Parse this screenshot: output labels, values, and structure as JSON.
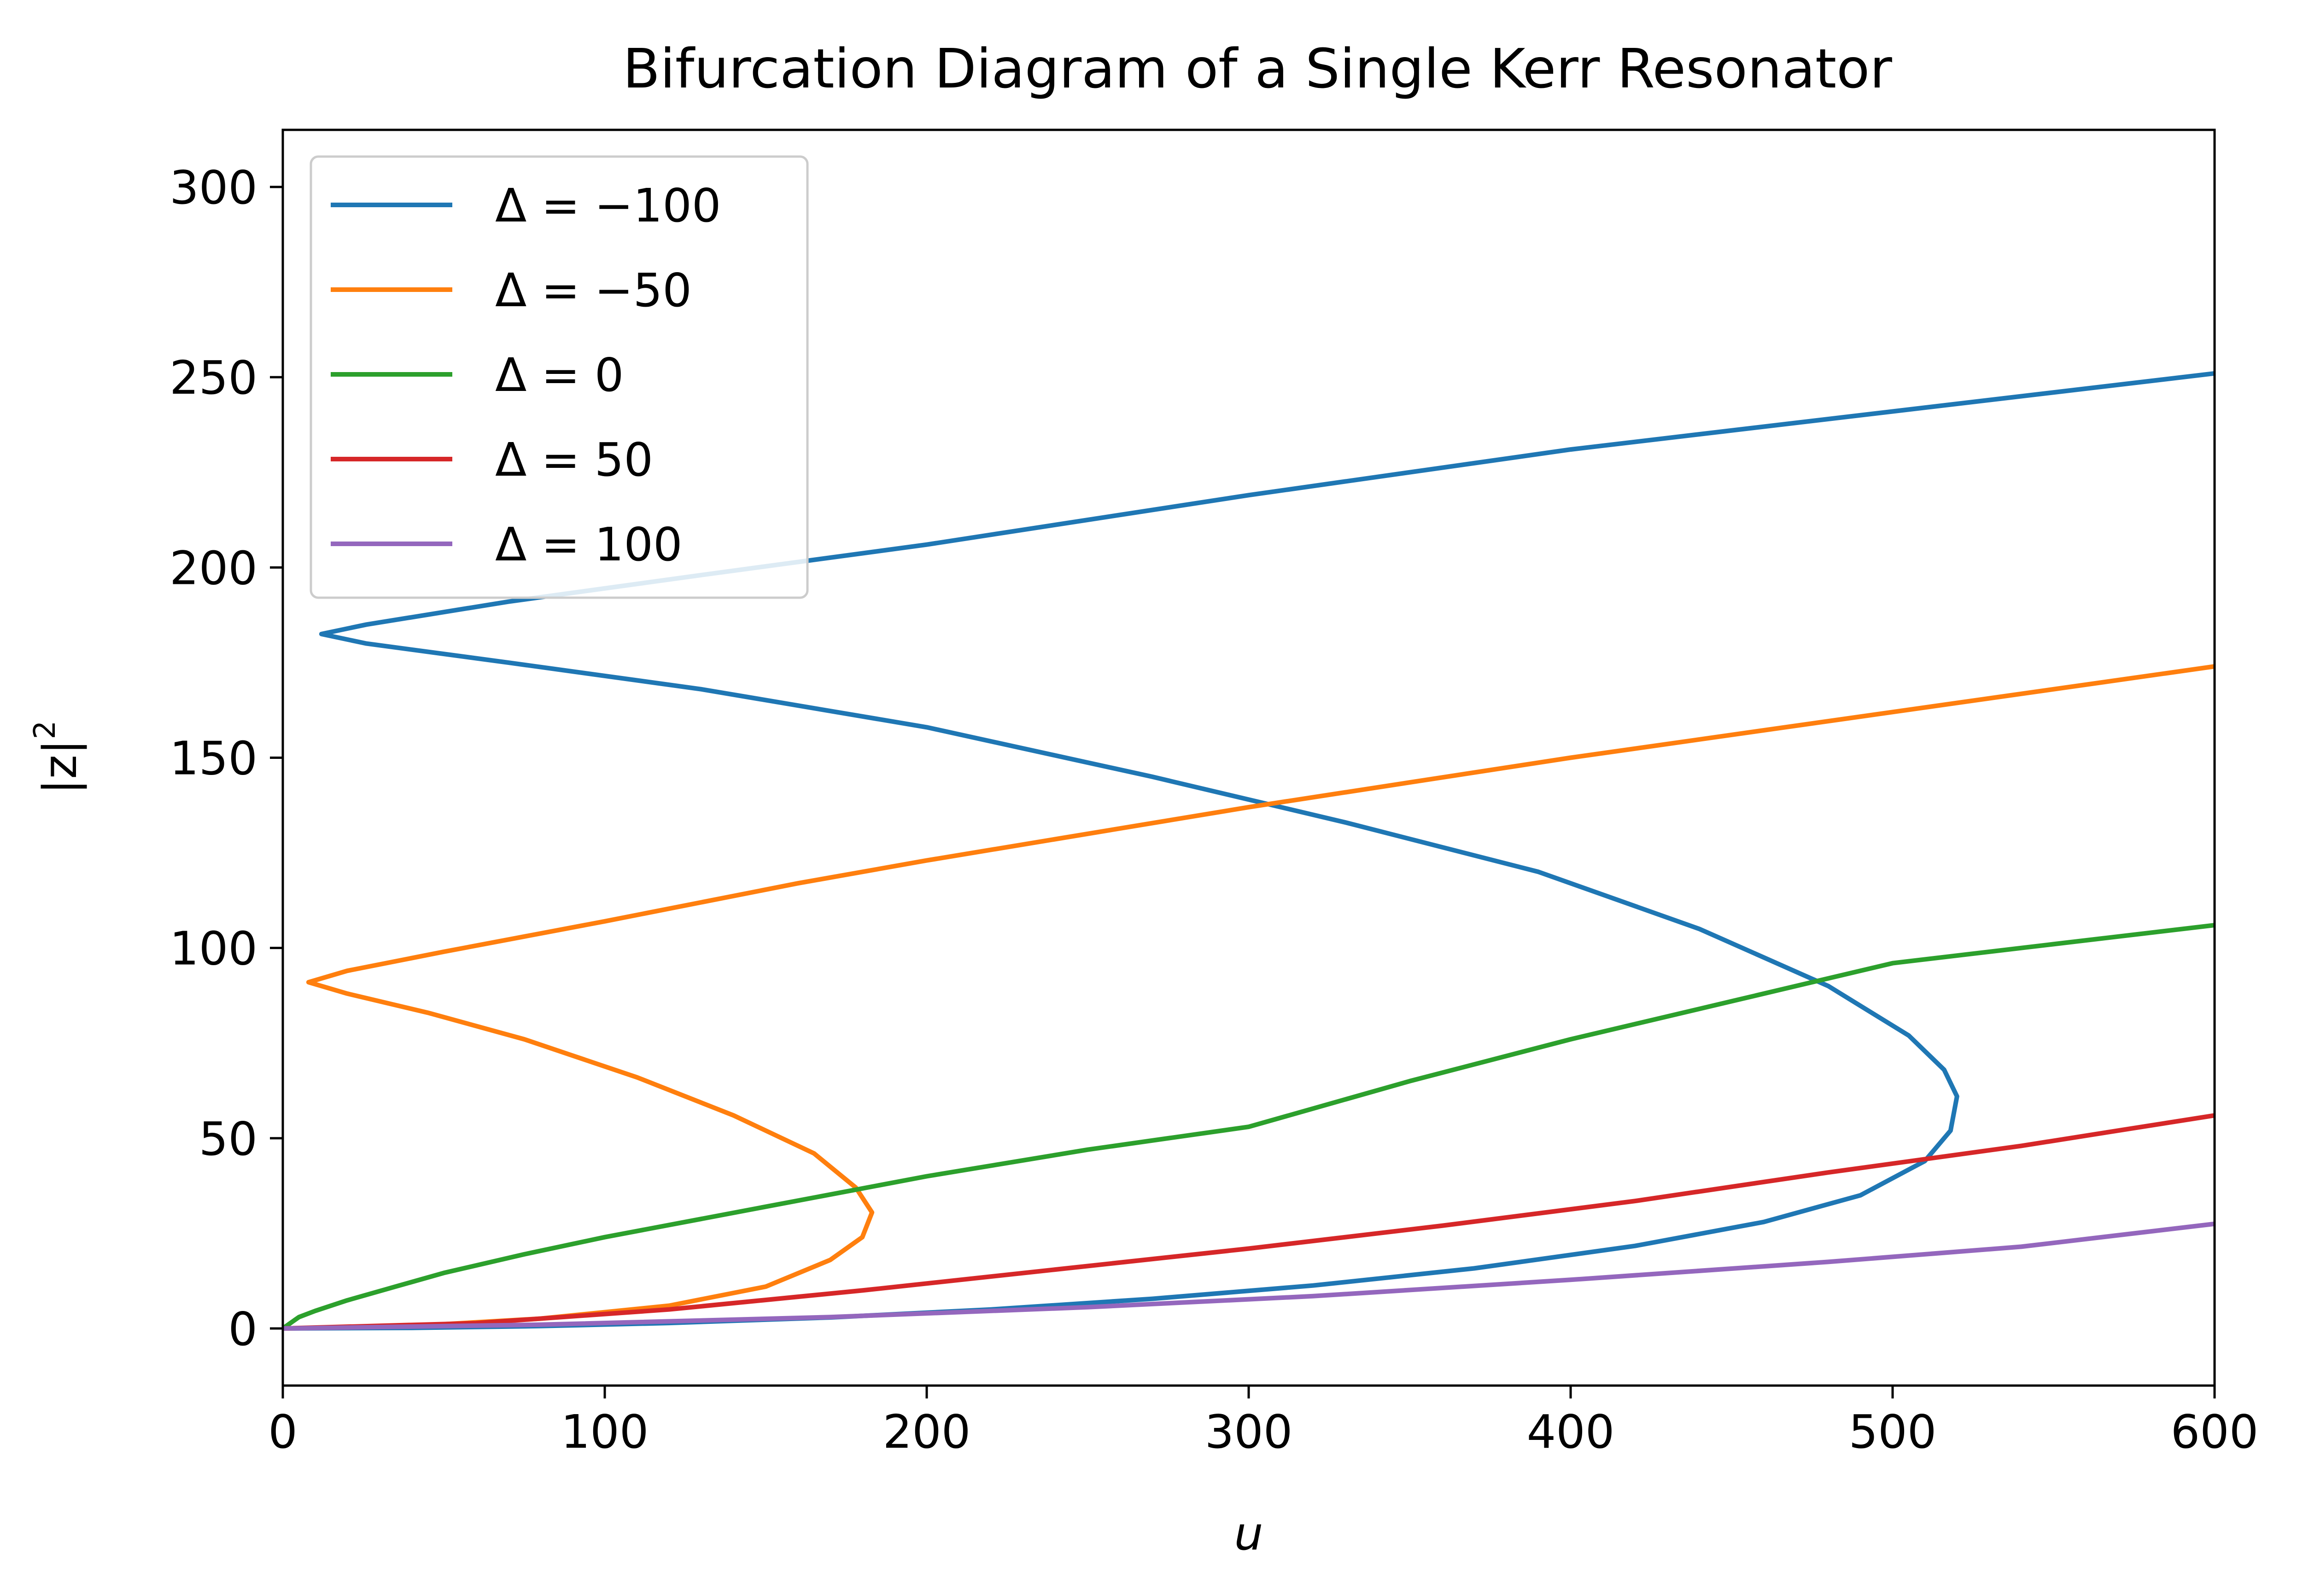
{
  "chart_data": {
    "type": "line",
    "title": "Bifurcation Diagram of a Single Kerr Resonator",
    "xlabel": "u",
    "ylabel_base": "|z|",
    "ylabel_sup": "2",
    "xlim": [
      0,
      600
    ],
    "ylim": [
      -15,
      315
    ],
    "x_ticks": [
      0,
      100,
      200,
      300,
      400,
      500,
      600
    ],
    "y_ticks": [
      0,
      50,
      100,
      150,
      200,
      250,
      300
    ],
    "grid": false,
    "legend_position": "upper-left",
    "series": [
      {
        "name": "Δ = −100",
        "legend_prefix": "Δ = ",
        "legend_value": "−100",
        "color": "#1f77b4",
        "points": [
          [
            0,
            0
          ],
          [
            40,
            0.16
          ],
          [
            80,
            0.64
          ],
          [
            120,
            1.45
          ],
          [
            170,
            2.9
          ],
          [
            220,
            5.0
          ],
          [
            270,
            7.8
          ],
          [
            320,
            11.3
          ],
          [
            370,
            15.8
          ],
          [
            420,
            21.7
          ],
          [
            460,
            28.0
          ],
          [
            490,
            35.0
          ],
          [
            510,
            44.0
          ],
          [
            518,
            52.0
          ],
          [
            520,
            61.0
          ],
          [
            516,
            68.0
          ],
          [
            505,
            77.0
          ],
          [
            480,
            90.0
          ],
          [
            440,
            105.0
          ],
          [
            390,
            120.0
          ],
          [
            330,
            133.0
          ],
          [
            270,
            145.0
          ],
          [
            200,
            158.0
          ],
          [
            130,
            168.0
          ],
          [
            70,
            175.0
          ],
          [
            26,
            180.0
          ],
          [
            12,
            182.5
          ],
          [
            26,
            185.0
          ],
          [
            70,
            191.0
          ],
          [
            130,
            198.0
          ],
          [
            200,
            206.0
          ],
          [
            300,
            219.0
          ],
          [
            400,
            231.0
          ],
          [
            500,
            241.0
          ],
          [
            600,
            251.0
          ]
        ]
      },
      {
        "name": "Δ = −50",
        "legend_prefix": "Δ = ",
        "legend_value": "−50",
        "color": "#ff7f0e",
        "points": [
          [
            0,
            0
          ],
          [
            40,
            0.65
          ],
          [
            80,
            2.6
          ],
          [
            120,
            6.0
          ],
          [
            150,
            11.0
          ],
          [
            170,
            18.0
          ],
          [
            180,
            24.0
          ],
          [
            183,
            30.5
          ],
          [
            178,
            37.0
          ],
          [
            165,
            46.0
          ],
          [
            140,
            56.0
          ],
          [
            110,
            66.0
          ],
          [
            75,
            76.0
          ],
          [
            45,
            83.0
          ],
          [
            20,
            88.0
          ],
          [
            8,
            91.0
          ],
          [
            20,
            94.0
          ],
          [
            50,
            99.0
          ],
          [
            100,
            107.0
          ],
          [
            160,
            117.0
          ],
          [
            200,
            123.0
          ],
          [
            300,
            137.0
          ],
          [
            400,
            150.0
          ],
          [
            500,
            162.0
          ],
          [
            600,
            174.0
          ]
        ]
      },
      {
        "name": "Δ = 0",
        "legend_prefix": "Δ = ",
        "legend_value": "0",
        "color": "#2ca02c",
        "points": [
          [
            0,
            0
          ],
          [
            5,
            3.0
          ],
          [
            10,
            4.6
          ],
          [
            20,
            7.4
          ],
          [
            35,
            11.0
          ],
          [
            50,
            14.6
          ],
          [
            75,
            19.5
          ],
          [
            100,
            24.0
          ],
          [
            150,
            32.0
          ],
          [
            200,
            40.0
          ],
          [
            250,
            47.0
          ],
          [
            300,
            53.0
          ],
          [
            350,
            65.0
          ],
          [
            400,
            76.0
          ],
          [
            450,
            86.0
          ],
          [
            500,
            96.0
          ],
          [
            550,
            101.0
          ],
          [
            600,
            106.0
          ]
        ]
      },
      {
        "name": "Δ = 50",
        "legend_prefix": "Δ = ",
        "legend_value": "50",
        "color": "#d62728",
        "points": [
          [
            0,
            0
          ],
          [
            60,
            1.4
          ],
          [
            120,
            5.0
          ],
          [
            180,
            10.0
          ],
          [
            240,
            15.5
          ],
          [
            300,
            21.0
          ],
          [
            360,
            27.0
          ],
          [
            420,
            33.5
          ],
          [
            480,
            41.0
          ],
          [
            540,
            48.0
          ],
          [
            600,
            56.0
          ]
        ]
      },
      {
        "name": "Δ = 100",
        "legend_prefix": "Δ = ",
        "legend_value": "100",
        "color": "#9467bd",
        "points": [
          [
            0,
            0
          ],
          [
            80,
            1.0
          ],
          [
            170,
            3.0
          ],
          [
            250,
            5.6
          ],
          [
            320,
            8.5
          ],
          [
            400,
            12.8
          ],
          [
            480,
            17.5
          ],
          [
            540,
            21.5
          ],
          [
            600,
            27.5
          ]
        ]
      }
    ]
  }
}
